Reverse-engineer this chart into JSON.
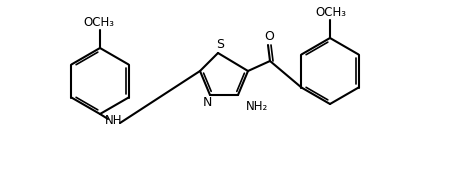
{
  "bg": "#ffffff",
  "lc": "#000000",
  "lw": 1.5,
  "dlw": 1.2,
  "figw": 4.62,
  "figh": 1.73,
  "dpi": 100,
  "atoms": {
    "N_label": "N",
    "S_label": "S",
    "NH_label": "NH",
    "NH2_label": "NH₂",
    "O_label": "O",
    "OCH3_left": "OCH₃",
    "OCH3_right": "OCH₃"
  }
}
